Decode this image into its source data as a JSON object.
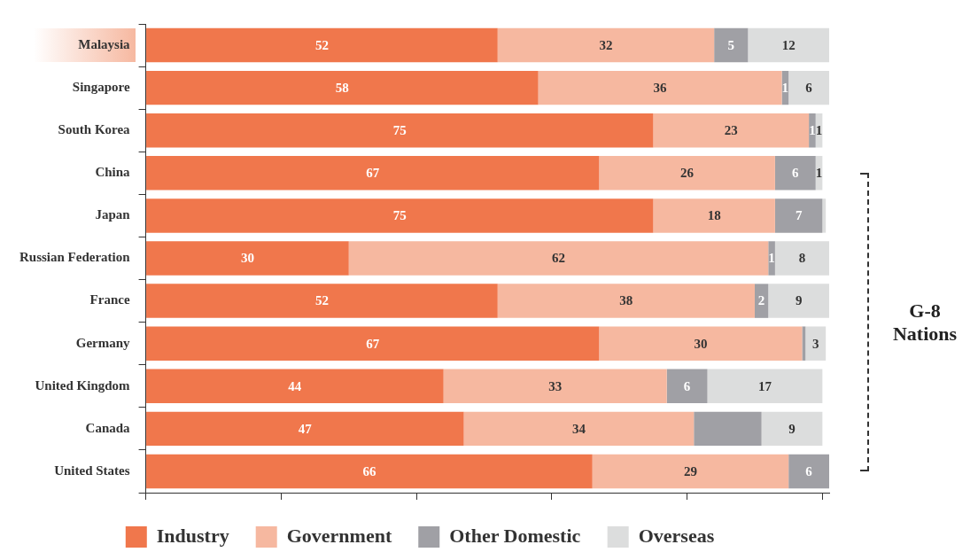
{
  "chart_data": {
    "type": "bar",
    "orientation": "horizontal",
    "stacked": true,
    "categories": [
      "Malaysia",
      "Singapore",
      "South Korea",
      "China",
      "Japan",
      "Russian Federation",
      "France",
      "Germany",
      "United Kingdom",
      "Canada",
      "United States"
    ],
    "series": [
      {
        "name": "Industry",
        "color": "#f0774c",
        "values": [
          52,
          58,
          75,
          67,
          75,
          30,
          52,
          67,
          44,
          47,
          66
        ],
        "value_labels": [
          "52",
          "58",
          "75",
          "67",
          "75",
          "30",
          "52",
          "67",
          "44",
          "47",
          "66"
        ]
      },
      {
        "name": "Government",
        "color": "#f6b8a0",
        "values": [
          32,
          36,
          23,
          26,
          18,
          62,
          38,
          30,
          33,
          34,
          29
        ],
        "value_labels": [
          "32",
          "36",
          "23",
          "26",
          "18",
          "62",
          "38",
          "30",
          "33",
          "34",
          "29"
        ]
      },
      {
        "name": "Other Domestic",
        "color": "#a0a0a5",
        "values": [
          5,
          1,
          1,
          6,
          7,
          1,
          2,
          0.5,
          6,
          10,
          6
        ],
        "value_labels": [
          "5",
          "1",
          "1",
          "6",
          "7",
          "1",
          "2",
          null,
          "6",
          null,
          "6"
        ]
      },
      {
        "name": "Overseas",
        "color": "#dcdddd",
        "values": [
          12,
          6,
          1,
          1,
          0.5,
          8,
          9,
          3,
          17,
          9,
          null
        ],
        "value_labels": [
          "12",
          "6",
          "1",
          "1",
          null,
          "8",
          "9",
          "3",
          "17",
          "9",
          null
        ]
      }
    ],
    "xlim": [
      0,
      101
    ],
    "xticks": [
      {
        "value": 0,
        "label": null
      },
      {
        "value": 20,
        "label": null
      },
      {
        "value": 40,
        "label": null
      },
      {
        "value": 60,
        "label": null
      },
      {
        "value": 80,
        "label": null
      },
      {
        "value": 100,
        "label": null
      }
    ],
    "tick_labels": "y",
    "grid": false,
    "legend": "bottom",
    "annotations": [
      "G-8 Nations"
    ]
  }
}
